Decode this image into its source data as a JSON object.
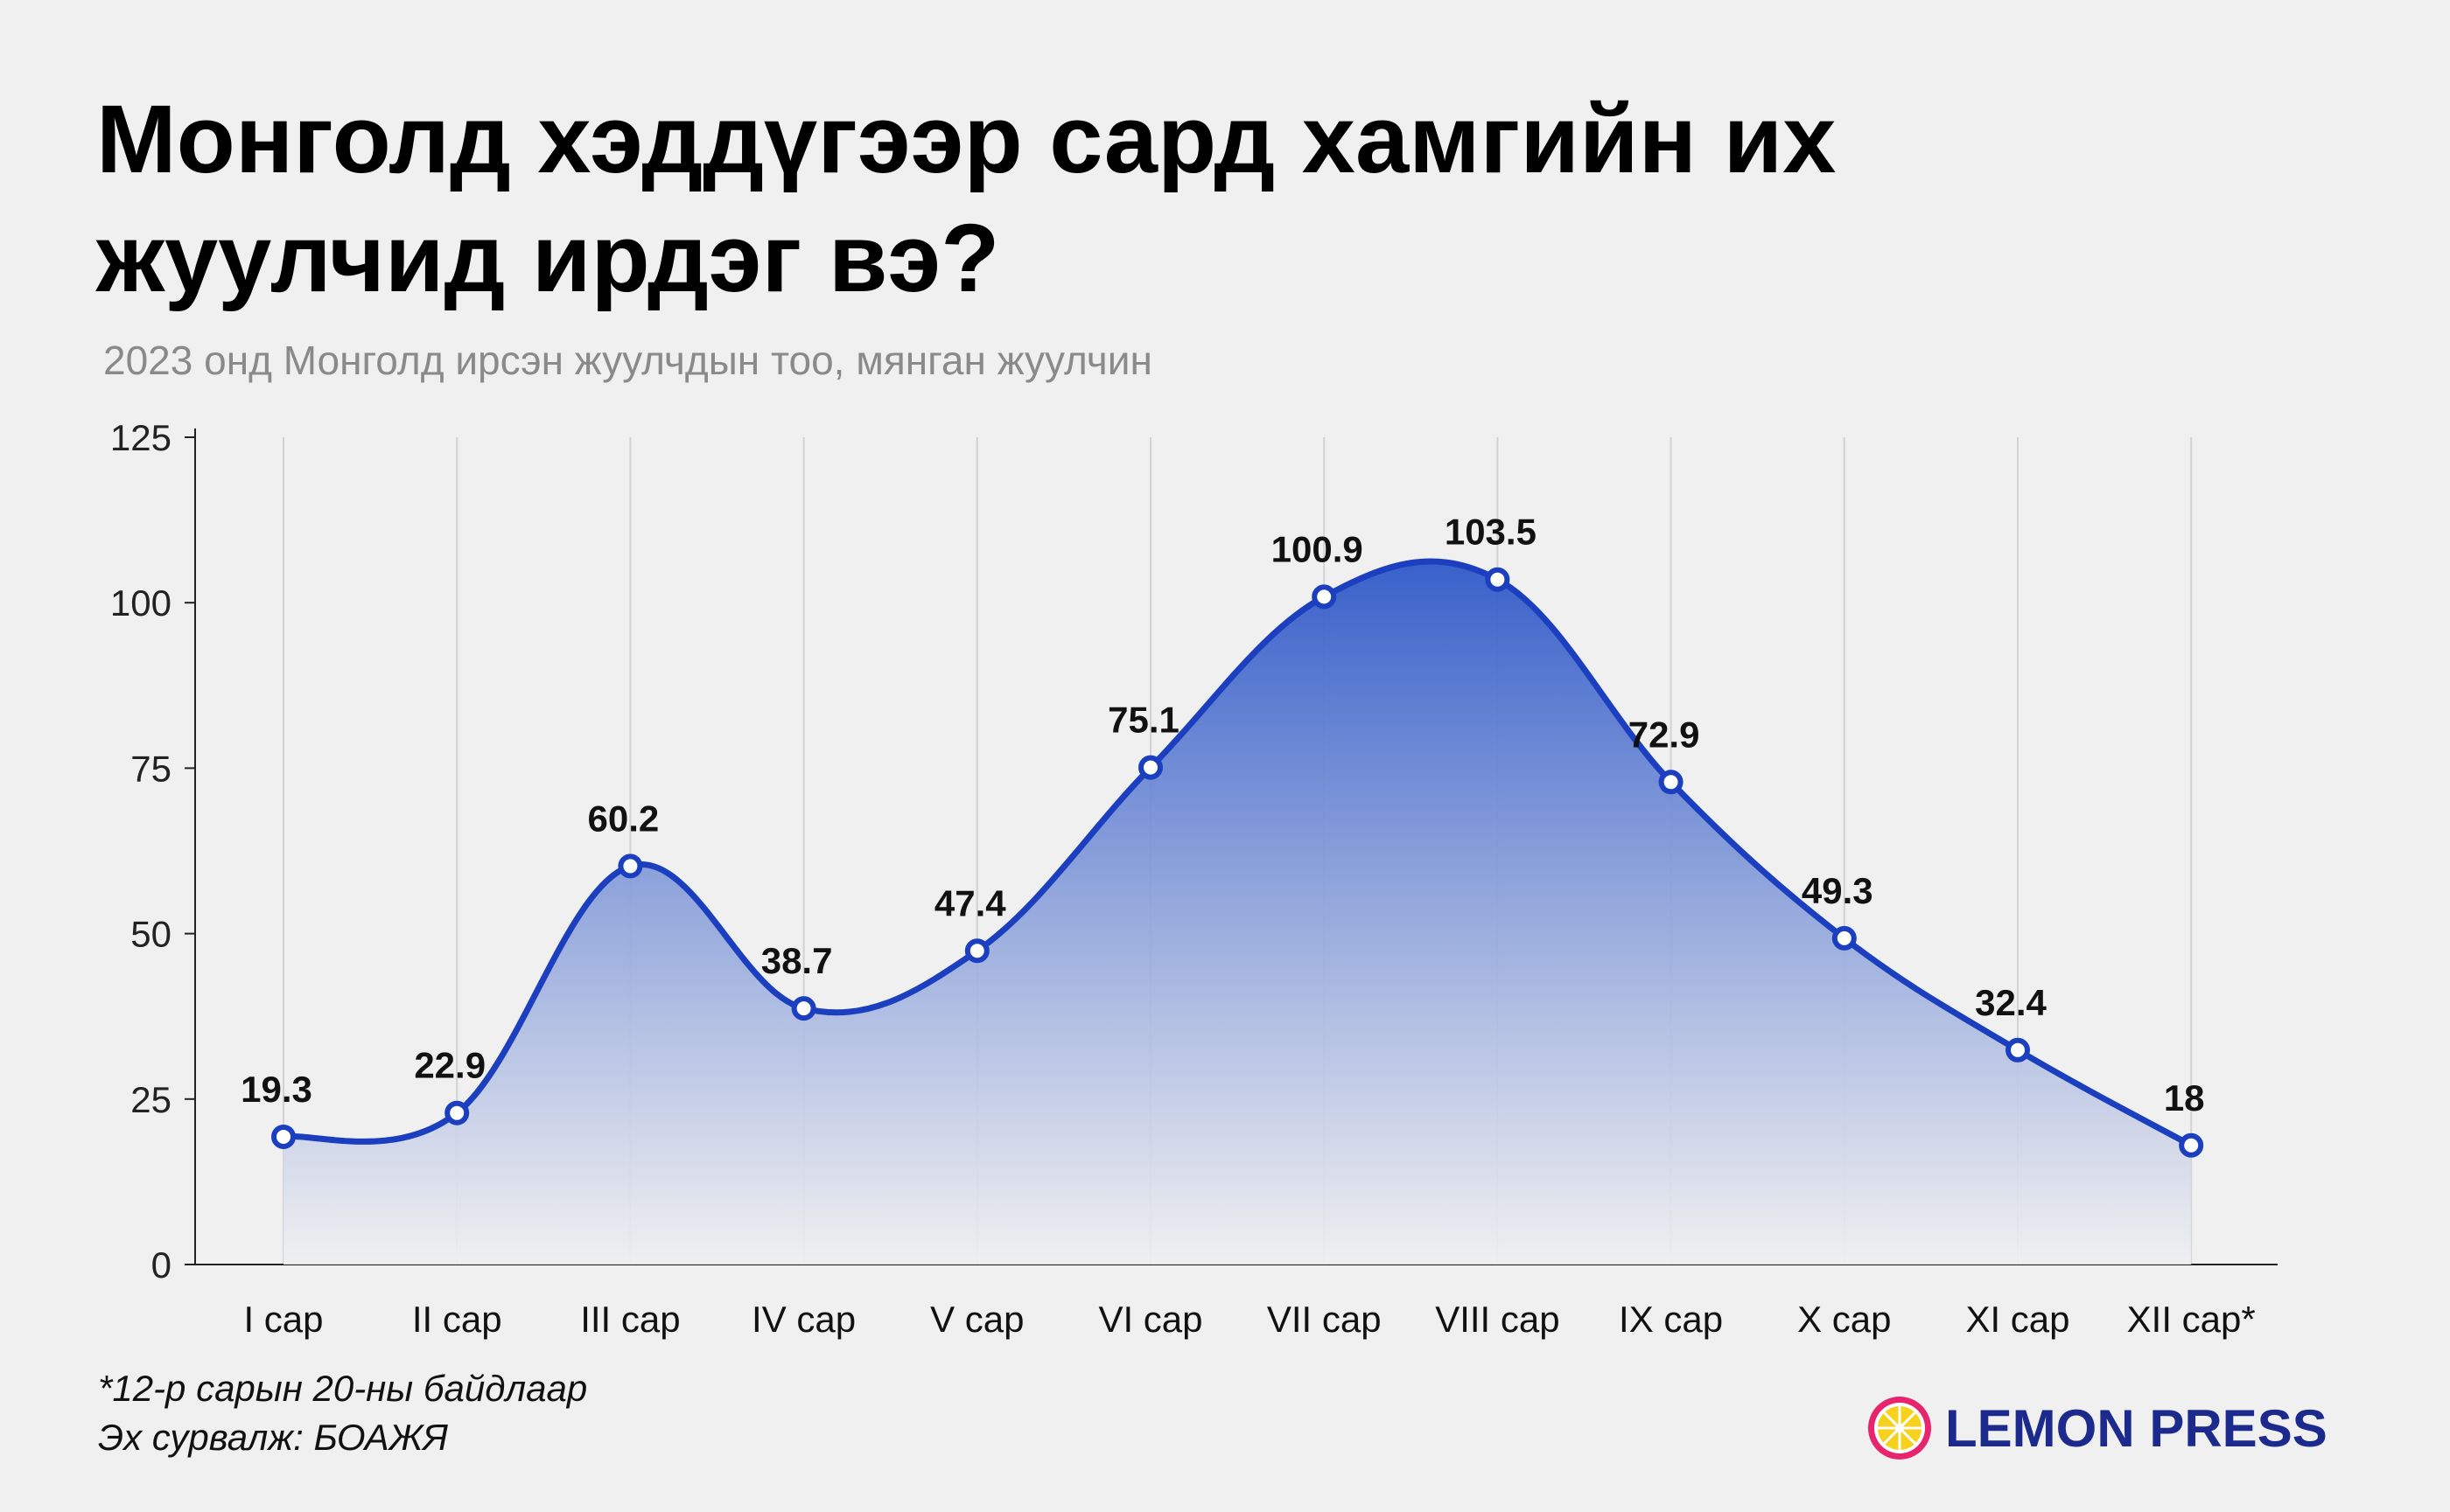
{
  "header": {
    "title_line1": "Монголд хэддүгээр сард хамгийн их",
    "title_line2": "жуулчид ирдэг вэ?",
    "subtitle": "2023 онд Монголд ирсэн жуулчдын тоо, мянган жуулчин"
  },
  "chart_data": {
    "type": "area",
    "categories": [
      "I сар",
      "II сар",
      "III сар",
      "IV сар",
      "V сар",
      "VI сар",
      "VII сар",
      "VIII сар",
      "IX сар",
      "X сар",
      "XI сар",
      "XII сар*"
    ],
    "values": [
      19.3,
      22.9,
      60.2,
      38.7,
      47.4,
      75.1,
      100.9,
      103.5,
      72.9,
      49.3,
      32.4,
      18
    ],
    "value_labels": [
      "19.3",
      "22.9",
      "60.2",
      "38.7",
      "47.4",
      "75.1",
      "100.9",
      "103.5",
      "72.9",
      "49.3",
      "32.4",
      "18"
    ],
    "ylim": [
      0,
      125
    ],
    "yticks": [
      0,
      25,
      50,
      75,
      100,
      125
    ],
    "ytick_labels": [
      "0",
      "25",
      "50",
      "75",
      "100",
      "125"
    ],
    "grid": "vertical",
    "line_color": "#1b3fbf",
    "fill_color_top": "#2f59c8",
    "fill_color_bottom": "#f0f0f0",
    "xlabel": "",
    "ylabel": ""
  },
  "footer": {
    "note_line1": "*12-р сарын 20-ны байдлаар",
    "note_line2": "Эх сурвалж: БОАЖЯ",
    "brand": "LEMON PRESS",
    "brand_color": "#1b2a8c",
    "logo_icon": "lemon-slice-icon"
  }
}
